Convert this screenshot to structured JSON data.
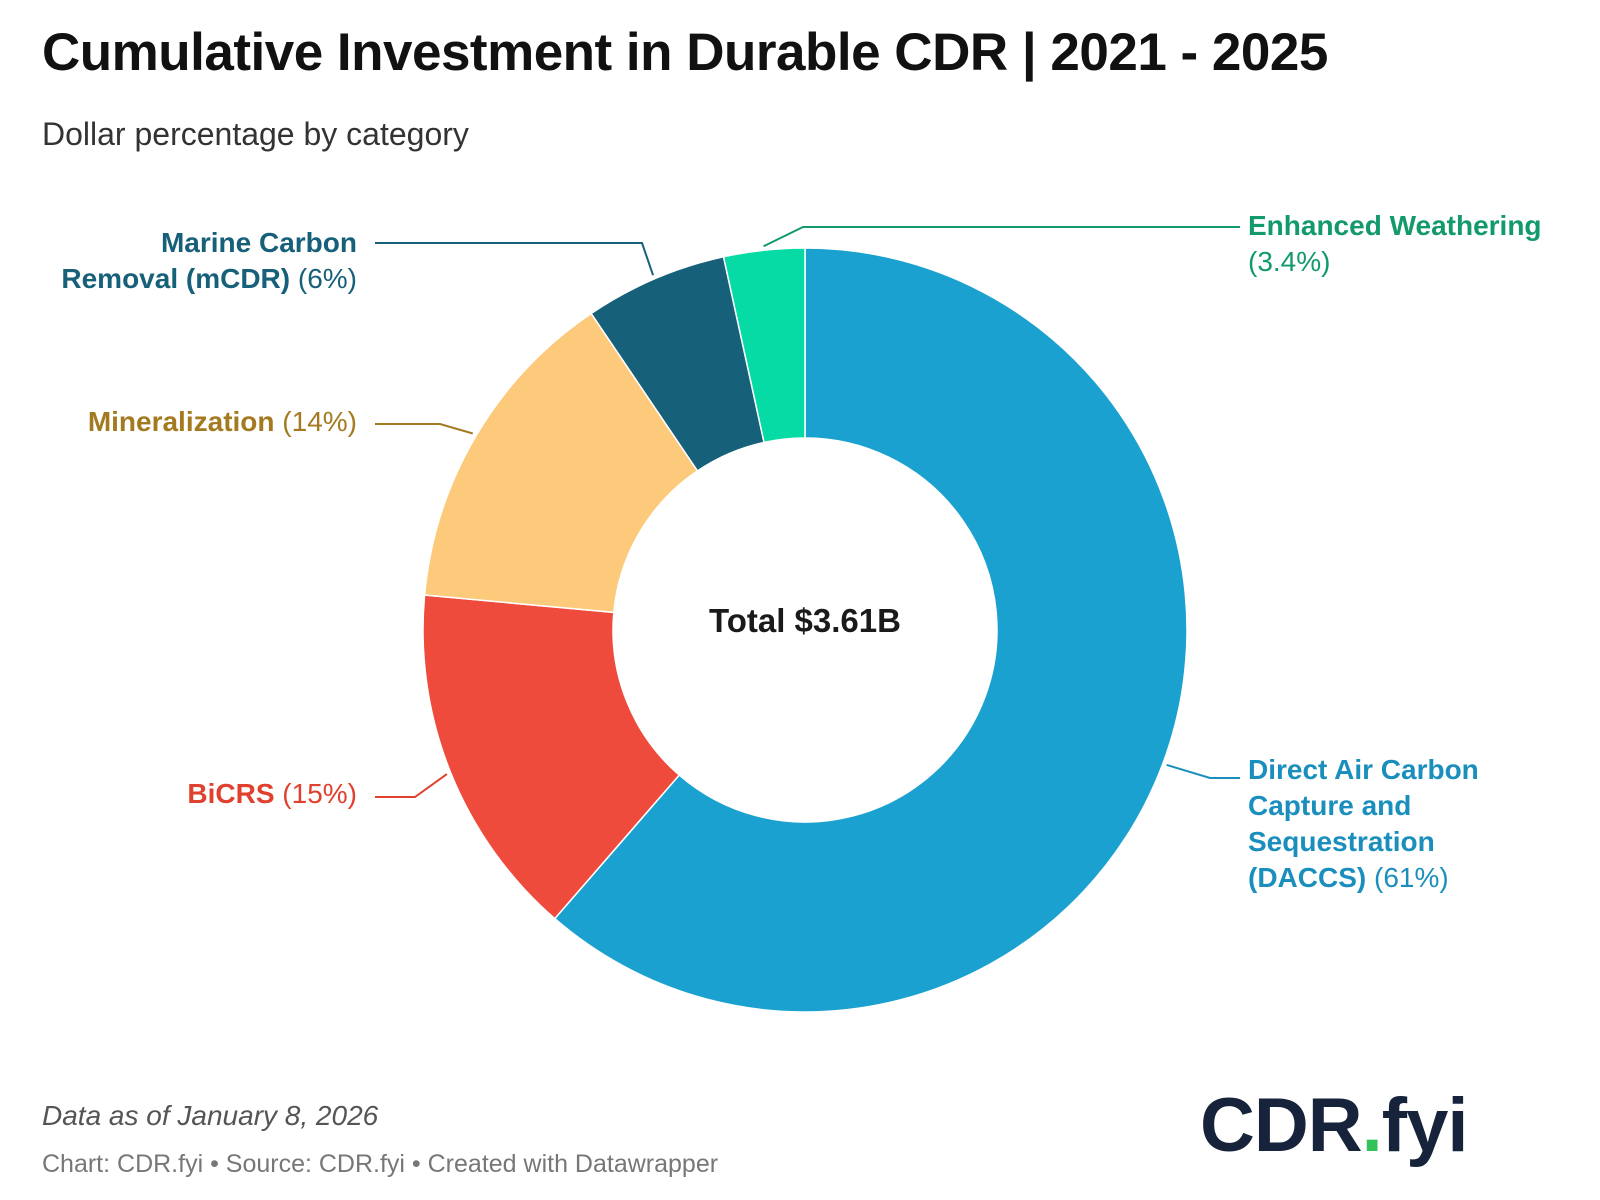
{
  "header": {
    "title": "Cumulative Investment in Durable CDR | 2021 - 2025",
    "subtitle": "Dollar percentage by category"
  },
  "center_label": "Total $3.61B",
  "footer": {
    "data_note": "Data as of January 8, 2026",
    "credit": "Chart: CDR.fyi • Source: CDR.fyi • Created with Datawrapper"
  },
  "logo": {
    "left": "CDR",
    "dot": ".",
    "right": "fyi",
    "dot_color": "#35c25b",
    "color": "#16233b"
  },
  "chart_data": {
    "type": "pie",
    "variant": "donut",
    "title": "Cumulative Investment in Durable CDR | 2021 - 2025",
    "subtitle": "Dollar percentage by category",
    "center_text": "Total $3.61B",
    "unit": "%",
    "slices": [
      {
        "name_lines": [
          "Direct Air Carbon",
          "Capture and",
          "Sequestration",
          "(DACCS)"
        ],
        "pct_label": "(61%)",
        "value": 61,
        "color": "#1ba1cf",
        "label_color": "#1a8fbd"
      },
      {
        "name_lines": [
          "BiCRS"
        ],
        "pct_label": "(15%)",
        "value": 15,
        "color": "#ef4b3c",
        "label_color": "#e0412f"
      },
      {
        "name_lines": [
          "Mineralization"
        ],
        "pct_label": "(14%)",
        "value": 14,
        "color": "#fdc97a",
        "label_color": "#a47a20"
      },
      {
        "name_lines": [
          "Marine Carbon",
          "Removal (mCDR)"
        ],
        "pct_label": "(6%)",
        "value": 6,
        "color": "#176079",
        "label_color": "#176079"
      },
      {
        "name_lines": [
          "Enhanced Weathering"
        ],
        "pct_label": "(3.4%)",
        "value": 3.4,
        "color": "#06dba6",
        "label_color": "#139a6a"
      }
    ]
  }
}
